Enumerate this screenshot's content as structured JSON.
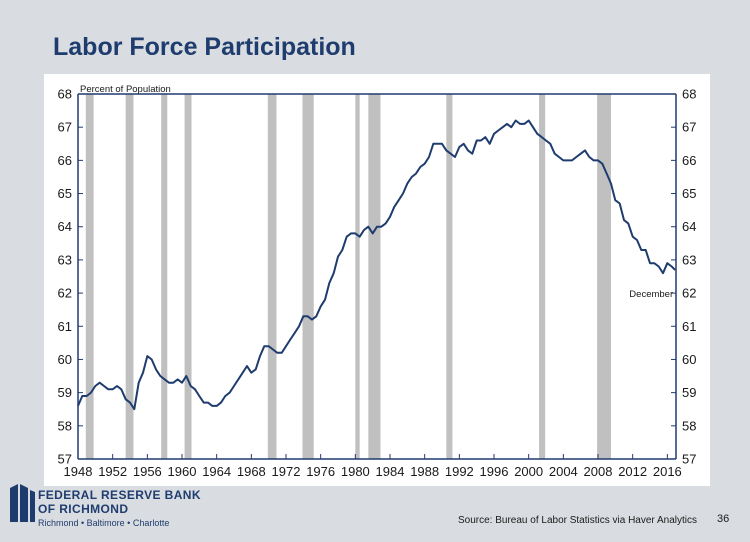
{
  "slide": {
    "title": "Labor Force Participation",
    "source": "Source: Bureau of Labor Statistics via Haver Analytics",
    "page_number": "36"
  },
  "logo": {
    "line1": "FEDERAL RESERVE BANK",
    "line2": "OF RICHMOND",
    "cities": "Richmond • Baltimore • Charlotte",
    "color": "#1f3c6e"
  },
  "chart_data": {
    "type": "line",
    "title": "Labor Force Participation",
    "ylabel": "Percent of Population",
    "xlim": [
      1948,
      2017
    ],
    "ylim": [
      57,
      68
    ],
    "yticks": [
      57,
      58,
      59,
      60,
      61,
      62,
      63,
      64,
      65,
      66,
      67,
      68
    ],
    "xtick_labels": [
      "1948",
      "1952",
      "1956",
      "1960",
      "1964",
      "1968",
      "1972",
      "1976",
      "1980",
      "1984",
      "1988",
      "1992",
      "1996",
      "2000",
      "2004",
      "2008",
      "2012",
      "2016"
    ],
    "annotation": "December",
    "line_color": "#1f3c6e",
    "recession_color": "#c0c0c0",
    "recessions": [
      [
        1948.9,
        1949.8
      ],
      [
        1953.5,
        1954.4
      ],
      [
        1957.6,
        1958.3
      ],
      [
        1960.3,
        1961.1
      ],
      [
        1969.9,
        1970.9
      ],
      [
        1973.9,
        1975.2
      ],
      [
        1980.0,
        1980.5
      ],
      [
        1981.5,
        1982.9
      ],
      [
        1990.5,
        1991.2
      ],
      [
        2001.2,
        2001.9
      ],
      [
        2007.9,
        2009.5
      ]
    ],
    "series": [
      {
        "x": [
          1948.0,
          1948.5,
          1949.0,
          1949.5,
          1950.0,
          1950.5,
          1951.0,
          1951.5,
          1952.0,
          1952.5,
          1953.0,
          1953.5,
          1954.0,
          1954.5,
          1955.0,
          1955.5,
          1956.0,
          1956.5,
          1957.0,
          1957.5,
          1958.0,
          1958.5,
          1959.0,
          1959.5,
          1960.0,
          1960.5,
          1961.0,
          1961.5,
          1962.0,
          1962.5,
          1963.0,
          1963.5,
          1964.0,
          1964.5,
          1965.0,
          1965.5,
          1966.0,
          1966.5,
          1967.0,
          1967.5,
          1968.0,
          1968.5,
          1969.0,
          1969.5,
          1970.0,
          1970.5,
          1971.0,
          1971.5,
          1972.0,
          1972.5,
          1973.0,
          1973.5,
          1974.0,
          1974.5,
          1975.0,
          1975.5,
          1976.0,
          1976.5,
          1977.0,
          1977.5,
          1978.0,
          1978.5,
          1979.0,
          1979.5,
          1980.0,
          1980.5,
          1981.0,
          1981.5,
          1982.0,
          1982.5,
          1983.0,
          1983.5,
          1984.0,
          1984.5,
          1985.0,
          1985.5,
          1986.0,
          1986.5,
          1987.0,
          1987.5,
          1988.0,
          1988.5,
          1989.0,
          1989.5,
          1990.0,
          1990.5,
          1991.0,
          1991.5,
          1992.0,
          1992.5,
          1993.0,
          1993.5,
          1994.0,
          1994.5,
          1995.0,
          1995.5,
          1996.0,
          1996.5,
          1997.0,
          1997.5,
          1998.0,
          1998.5,
          1999.0,
          1999.5,
          2000.0,
          2000.5,
          2001.0,
          2001.5,
          2002.0,
          2002.5,
          2003.0,
          2003.5,
          2004.0,
          2004.5,
          2005.0,
          2005.5,
          2006.0,
          2006.5,
          2007.0,
          2007.5,
          2008.0,
          2008.5,
          2009.0,
          2009.5,
          2010.0,
          2010.5,
          2011.0,
          2011.5,
          2012.0,
          2012.5,
          2013.0,
          2013.5,
          2014.0,
          2014.5,
          2015.0,
          2015.5,
          2016.0,
          2016.5,
          2016.9
        ],
        "y": [
          58.6,
          58.9,
          58.9,
          59.0,
          59.2,
          59.3,
          59.2,
          59.1,
          59.1,
          59.2,
          59.1,
          58.8,
          58.7,
          58.5,
          59.3,
          59.6,
          60.1,
          60.0,
          59.7,
          59.5,
          59.4,
          59.3,
          59.3,
          59.4,
          59.3,
          59.5,
          59.2,
          59.1,
          58.9,
          58.7,
          58.7,
          58.6,
          58.6,
          58.7,
          58.9,
          59.0,
          59.2,
          59.4,
          59.6,
          59.8,
          59.6,
          59.7,
          60.1,
          60.4,
          60.4,
          60.3,
          60.2,
          60.2,
          60.4,
          60.6,
          60.8,
          61.0,
          61.3,
          61.3,
          61.2,
          61.3,
          61.6,
          61.8,
          62.3,
          62.6,
          63.1,
          63.3,
          63.7,
          63.8,
          63.8,
          63.7,
          63.9,
          64.0,
          63.8,
          64.0,
          64.0,
          64.1,
          64.3,
          64.6,
          64.8,
          65.0,
          65.3,
          65.5,
          65.6,
          65.8,
          65.9,
          66.1,
          66.5,
          66.5,
          66.5,
          66.3,
          66.2,
          66.1,
          66.4,
          66.5,
          66.3,
          66.2,
          66.6,
          66.6,
          66.7,
          66.5,
          66.8,
          66.9,
          67.0,
          67.1,
          67.0,
          67.2,
          67.1,
          67.1,
          67.2,
          67.0,
          66.8,
          66.7,
          66.6,
          66.5,
          66.2,
          66.1,
          66.0,
          66.0,
          66.0,
          66.1,
          66.2,
          66.3,
          66.1,
          66.0,
          66.0,
          65.9,
          65.6,
          65.3,
          64.8,
          64.7,
          64.2,
          64.1,
          63.7,
          63.6,
          63.3,
          63.3,
          62.9,
          62.9,
          62.8,
          62.6,
          62.9,
          62.8,
          62.7
        ]
      }
    ]
  }
}
